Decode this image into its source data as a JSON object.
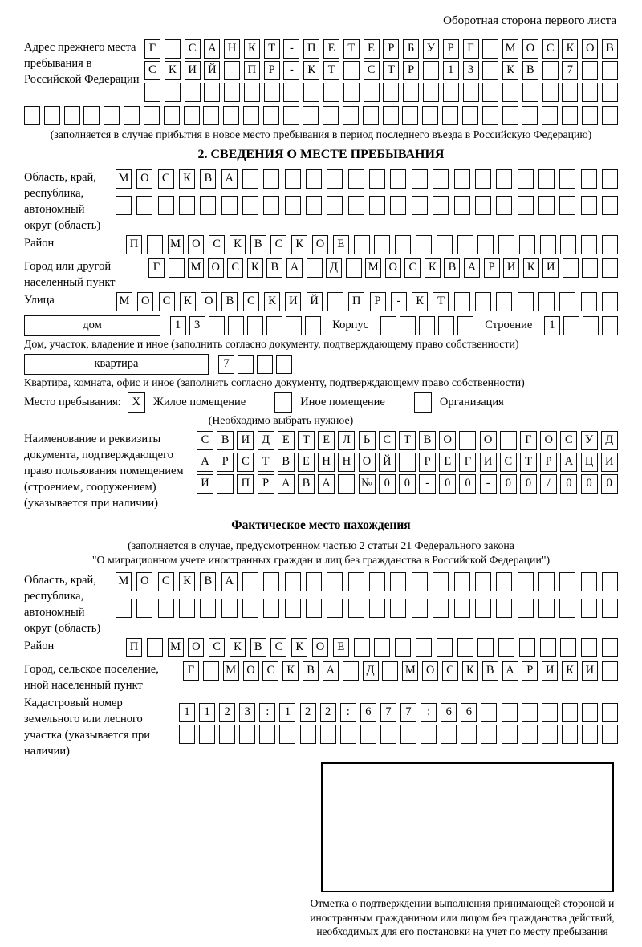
{
  "page": {
    "side_note": "Оборотная сторона первого листа"
  },
  "prev_address": {
    "label": "Адрес прежнего места пребывания в Российской Федерации",
    "rows": [
      {
        "t": "Г САНКТ-ПЕТЕРБУРГ МОСКОВ",
        "n": 24
      },
      {
        "t": "СКИЙ ПР-КТ СТР 13 КВ 7",
        "n": 24
      },
      {
        "t": "",
        "n": 24
      }
    ],
    "row_full": {
      "t": "",
      "n": 30
    },
    "note": "(заполняется в случае прибытия в новое место пребывания в период последнего въезда в Российскую Федерацию)"
  },
  "section2": {
    "title": "2. СВЕДЕНИЯ О МЕСТЕ ПРЕБЫВАНИЯ",
    "oblast": {
      "label": "Область, край, республика, автономный округ (область)",
      "rows": [
        {
          "t": "МОСКВА",
          "n": 24
        },
        {
          "t": "",
          "n": 24
        }
      ]
    },
    "raion": {
      "label": "Район",
      "row": {
        "t": "П МОСКВСКОЕ",
        "n": 24
      }
    },
    "gorod": {
      "label": "Город или другой населенный пункт",
      "row": {
        "t": "Г МОСКВА Д МОСКВАРИКИ",
        "n": 24
      }
    },
    "ulitsa": {
      "label": "Улица",
      "row": {
        "t": "МОСКОВСКИЙ ПР-КТ",
        "n": 24
      }
    },
    "dom": {
      "label": "дом",
      "boxes": {
        "t": "13",
        "n": 8
      },
      "korpus_label": "Корпус",
      "korpus_boxes": {
        "t": "",
        "n": 5
      },
      "stroenie_label": "Строение",
      "stroenie_boxes": {
        "t": "1",
        "n": 4
      },
      "note": "Дом, участок, владение и иное (заполнить согласно документу, подтверждающему право собственности)"
    },
    "kvartira": {
      "label": "квартира",
      "boxes": {
        "t": "7",
        "n": 4
      },
      "note": "Квартира, комната, офис и иное (заполнить согласно документу, подтверждающему право собственности)"
    },
    "mesto": {
      "label": "Место пребывания:",
      "options": [
        {
          "label": "Жилое помещение",
          "mark": "X"
        },
        {
          "label": "Иное помещение",
          "mark": ""
        },
        {
          "label": "Организация",
          "mark": ""
        }
      ],
      "note": "(Необходимо выбрать нужное)"
    },
    "doc": {
      "label": "Наименование и реквизиты документа, подтверждающего право пользования помещением (строением, сооружением) (указывается при наличии)",
      "rows": [
        {
          "t": "СВИДЕТЕЛЬСТВО О ГОСУД",
          "n": 21
        },
        {
          "t": "АРСТВЕННОЙ РЕГИСТРАЦИ",
          "n": 21
        },
        {
          "t": "И ПРАВА №00-00-00/000",
          "n": 21
        }
      ]
    }
  },
  "fact": {
    "title": "Фактическое место нахождения",
    "note1": "(заполняется в случае, предусмотренном частью 2 статьи 21 Федерального закона",
    "note2": "\"О миграционном учете иностранных граждан и лиц без гражданства в Российской Федерации\")",
    "oblast": {
      "label": "Область, край, республика, автономный округ (область)",
      "rows": [
        {
          "t": "МОСКВА",
          "n": 24
        },
        {
          "t": "",
          "n": 24
        }
      ]
    },
    "raion": {
      "label": "Район",
      "row": {
        "t": "П МОСКВСКОЕ",
        "n": 24
      }
    },
    "gorod": {
      "label": "Город, сельское поселение, иной населенный пункт",
      "row": {
        "t": "Г МОСКВА Д МОСКВАРИКИ",
        "n": 22
      }
    },
    "kadastr": {
      "label": "Кадастровый номер земельного или лесного участка (указывается при наличии)",
      "rows": [
        {
          "t": "1123:122:677:66",
          "n": 22
        },
        {
          "t": "",
          "n": 22
        }
      ]
    },
    "stamp_note": "Отметка о подтверждении выполнения принимающей стороной и иностранным гражданином или лицом без гражданства действий, необходимых для его постановки на учет по месту пребывания"
  }
}
